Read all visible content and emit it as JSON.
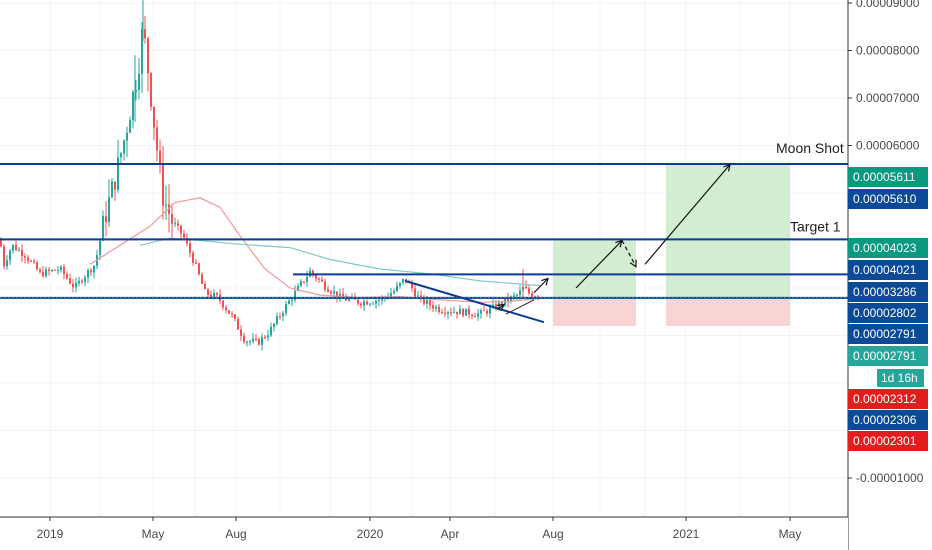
{
  "chart_data": {
    "type": "line",
    "title": "",
    "xlabel": "",
    "ylabel": "",
    "x_ticks": [
      "2019",
      "May",
      "Aug",
      "2020",
      "Apr",
      "Aug",
      "2021",
      "May"
    ],
    "y_ticks": [
      "0.00009000",
      "0.00008000",
      "0.00007000",
      "0.00006000",
      "0.00003286",
      "0.00002802",
      "0.00002791",
      "-0.00001000"
    ],
    "ylim": [
      -1.4e-05,
      9.55e-05
    ],
    "grid": true,
    "horizontal_levels": [
      5.611e-05,
      4.023e-05,
      3.286e-05,
      2.791e-05
    ],
    "current_price": 2.802e-05,
    "countdown": "1d 16h",
    "price_tags": [
      {
        "label": "0.00005611",
        "value": 5.611e-05,
        "color": "#089981"
      },
      {
        "label": "0.00005610",
        "value": 5.61e-05,
        "color": "#0b4a96"
      },
      {
        "label": "0.00004023",
        "value": 4.023e-05,
        "color": "#089981"
      },
      {
        "label": "0.00004021",
        "value": 4.021e-05,
        "color": "#0b4a96"
      },
      {
        "label": "0.00003286",
        "value": 3.286e-05,
        "color": "#0b4a96"
      },
      {
        "label": "0.00002802",
        "value": 2.802e-05,
        "color": "#0b4a96"
      },
      {
        "label": "0.00002791",
        "value": 2.791e-05,
        "color": "#0b4a96"
      },
      {
        "label": "0.00002791",
        "value": 2.791e-05,
        "color": "#26a69a"
      },
      {
        "label": "0.00002312",
        "value": 2.312e-05,
        "color": "#e11d1d"
      },
      {
        "label": "0.00002306",
        "value": 2.306e-05,
        "color": "#0b4a96"
      },
      {
        "label": "0.00002301",
        "value": 2.301e-05,
        "color": "#e11d1d"
      }
    ],
    "annotations": [
      {
        "text": "Moon Shot",
        "value": 5.611e-05
      },
      {
        "text": "Target 1",
        "value": 4.023e-05
      }
    ],
    "projection_zones": [
      {
        "name": "zone-1",
        "entry": 2.802e-05,
        "target": 4.023e-05,
        "stop": 2.312e-05
      },
      {
        "name": "zone-2",
        "entry": 2.802e-05,
        "target": 5.611e-05,
        "stop": 2.312e-05
      }
    ],
    "colors": {
      "up": "#26a69a",
      "down": "#ef5350",
      "level": "#0b3d91",
      "target_zone": "#cdebcd",
      "stop_zone": "#f9cfd0",
      "dotted": "#26a69a"
    }
  }
}
